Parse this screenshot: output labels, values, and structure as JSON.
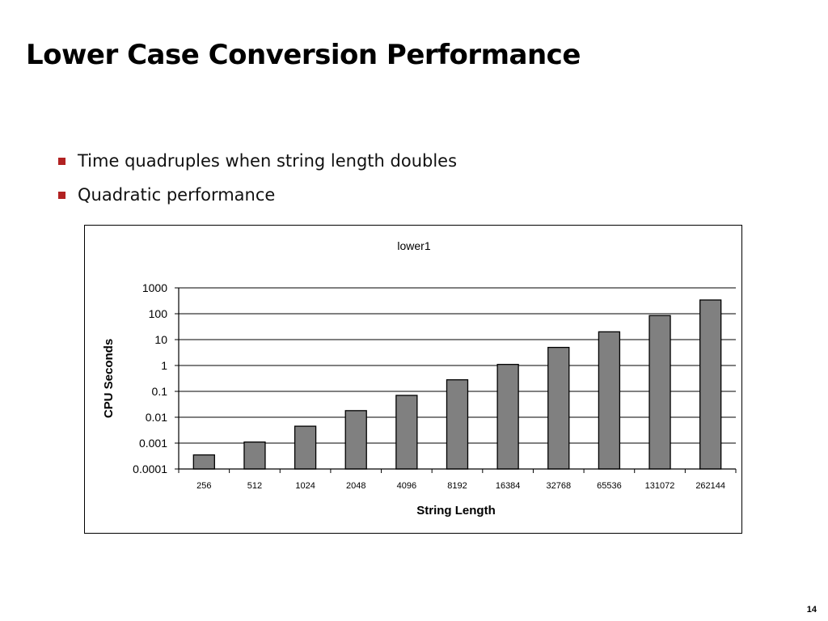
{
  "slide": {
    "title": "Lower Case Conversion Performance",
    "bullets": [
      "Time quadruples when string length doubles",
      "Quadratic performance"
    ],
    "page_number": "14",
    "bullet_color": "#b22222"
  },
  "chart_data": {
    "type": "bar",
    "title": "lower1",
    "xlabel": "String Length",
    "ylabel": "CPU Seconds",
    "y_scale": "log",
    "ylim": [
      0.0001,
      1000
    ],
    "yticks": [
      "0.0001",
      "0.001",
      "0.01",
      "0.1",
      "1",
      "10",
      "100",
      "1000"
    ],
    "grid": true,
    "bar_color": "#808080",
    "categories": [
      "256",
      "512",
      "1024",
      "2048",
      "4096",
      "8192",
      "16384",
      "32768",
      "65536",
      "131072",
      "262144"
    ],
    "values": [
      0.00035,
      0.0011,
      0.0045,
      0.018,
      0.07,
      0.28,
      1.1,
      5.0,
      20.0,
      85.0,
      340.0
    ]
  }
}
